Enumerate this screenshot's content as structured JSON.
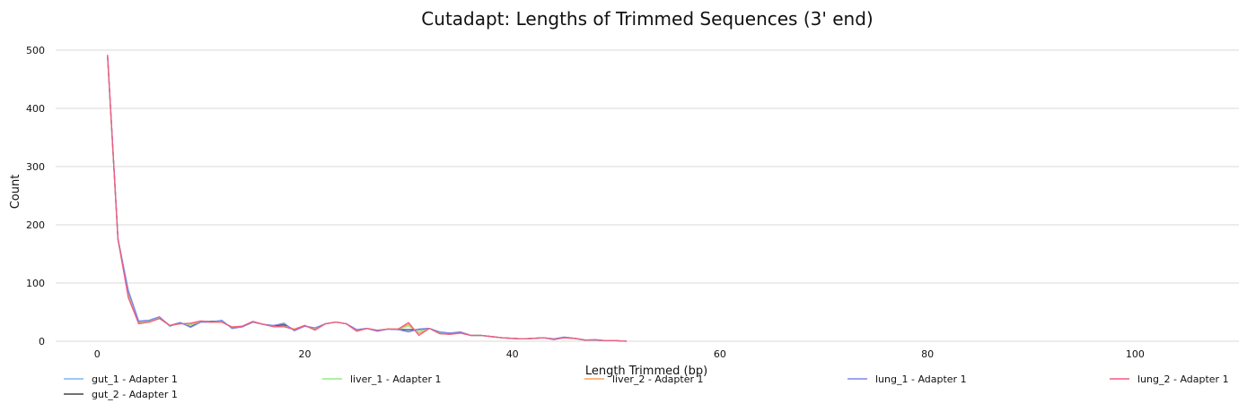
{
  "chart_data": {
    "type": "line",
    "title": "Cutadapt: Lengths of Trimmed Sequences (3' end)",
    "xlabel": "Length Trimmed (bp)",
    "ylabel": "Count",
    "xlim": [
      -4,
      110
    ],
    "ylim": [
      0,
      500
    ],
    "xticks": [
      0,
      20,
      40,
      60,
      80,
      100
    ],
    "yticks": [
      0,
      100,
      200,
      300,
      400,
      500
    ],
    "grid": "horizontal",
    "legend_position": "bottom",
    "series": [
      {
        "name": "gut_1 - Adapter 1",
        "color": "#7cb5ec",
        "x": [
          1,
          2,
          3,
          4,
          5,
          6,
          7,
          8,
          9,
          10,
          11,
          12,
          13,
          14,
          15,
          16,
          17,
          18,
          19,
          20,
          21,
          22,
          23,
          24,
          25,
          26,
          27,
          28,
          29,
          30,
          31,
          32,
          33,
          34,
          35,
          36,
          37,
          38,
          39,
          40,
          41,
          42,
          43,
          44,
          45,
          46,
          47,
          48,
          49,
          50,
          51
        ],
        "y": [
          490,
          175,
          88,
          35,
          36,
          42,
          26,
          32,
          24,
          33,
          33,
          36,
          22,
          25,
          33,
          29,
          27,
          30,
          19,
          26,
          23,
          30,
          33,
          30,
          20,
          22,
          18,
          21,
          20,
          17,
          21,
          22,
          16,
          14,
          16,
          10,
          10,
          8,
          6,
          5,
          4,
          5,
          6,
          4,
          7,
          5,
          2,
          2,
          1,
          1,
          0
        ]
      },
      {
        "name": "gut_2 - Adapter 1",
        "color": "#434348",
        "x": [
          1,
          2,
          3,
          4,
          5,
          6,
          7,
          8,
          9,
          10,
          11,
          12,
          13,
          14,
          15,
          16,
          17,
          18,
          19,
          20,
          21,
          22,
          23,
          24,
          25,
          26,
          27,
          28,
          29,
          30,
          31,
          32,
          33,
          34,
          35,
          36,
          37,
          38,
          39,
          40,
          41,
          42,
          43,
          44,
          45,
          46,
          47,
          48,
          49,
          50,
          51
        ],
        "y": [
          491,
          176,
          84,
          33,
          35,
          41,
          27,
          32,
          25,
          34,
          34,
          35,
          23,
          25,
          33,
          29,
          26,
          28,
          20,
          26,
          22,
          30,
          33,
          30,
          19,
          22,
          18,
          21,
          20,
          20,
          20,
          22,
          15,
          13,
          15,
          10,
          10,
          8,
          6,
          5,
          4,
          5,
          6,
          4,
          6,
          5,
          2,
          2,
          1,
          1,
          0
        ]
      },
      {
        "name": "liver_1 - Adapter 1",
        "color": "#90ed7d",
        "x": [
          1,
          2,
          3,
          4,
          5,
          6,
          7,
          8,
          9,
          10,
          11,
          12,
          13,
          14,
          15,
          16,
          17,
          18,
          19,
          20,
          21,
          22,
          23,
          24,
          25,
          26,
          27,
          28,
          29,
          30,
          31,
          32,
          33,
          34,
          35,
          36,
          37,
          38,
          39,
          40,
          41,
          42,
          43,
          44,
          45,
          46,
          47,
          48,
          49,
          50,
          51
        ],
        "y": [
          490,
          175,
          80,
          32,
          34,
          40,
          27,
          31,
          28,
          34,
          33,
          34,
          24,
          26,
          33,
          29,
          25,
          26,
          21,
          27,
          21,
          30,
          33,
          30,
          18,
          22,
          18,
          21,
          21,
          26,
          16,
          22,
          14,
          12,
          14,
          10,
          10,
          8,
          6,
          5,
          4,
          5,
          6,
          4,
          6,
          5,
          2,
          2,
          1,
          1,
          0
        ]
      },
      {
        "name": "liver_2 - Adapter 1",
        "color": "#f7a35c",
        "x": [
          1,
          2,
          3,
          4,
          5,
          6,
          7,
          8,
          9,
          10,
          11,
          12,
          13,
          14,
          15,
          16,
          17,
          18,
          19,
          20,
          21,
          22,
          23,
          24,
          25,
          26,
          27,
          28,
          29,
          30,
          31,
          32,
          33,
          34,
          35,
          36,
          37,
          38,
          39,
          40,
          41,
          42,
          43,
          44,
          45,
          46,
          47,
          48,
          49,
          50,
          51
        ],
        "y": [
          491,
          175,
          77,
          31,
          33,
          39,
          27,
          30,
          30,
          34,
          33,
          33,
          25,
          26,
          34,
          29,
          25,
          25,
          21,
          27,
          20,
          30,
          33,
          30,
          18,
          22,
          18,
          21,
          21,
          29,
          13,
          22,
          13,
          12,
          14,
          10,
          10,
          8,
          6,
          5,
          4,
          5,
          6,
          3,
          6,
          5,
          2,
          2,
          1,
          1,
          0
        ]
      },
      {
        "name": "lung_1 - Adapter 1",
        "color": "#8085e9",
        "x": [
          1,
          2,
          3,
          4,
          5,
          6,
          7,
          8,
          9,
          10,
          11,
          12,
          13,
          14,
          15,
          16,
          17,
          18,
          19,
          20,
          21,
          22,
          23,
          24,
          25,
          26,
          27,
          28,
          29,
          30,
          31,
          32,
          33,
          34,
          35,
          36,
          37,
          38,
          39,
          40,
          41,
          42,
          43,
          44,
          45,
          46,
          47,
          48,
          49,
          50,
          51
        ],
        "y": [
          491,
          176,
          86,
          34,
          36,
          42,
          26,
          32,
          24,
          33,
          33,
          36,
          22,
          25,
          33,
          29,
          27,
          31,
          18,
          26,
          23,
          30,
          33,
          30,
          20,
          22,
          17,
          21,
          20,
          16,
          21,
          22,
          16,
          14,
          16,
          10,
          10,
          8,
          6,
          5,
          4,
          5,
          6,
          4,
          7,
          5,
          2,
          2,
          1,
          1,
          0
        ]
      },
      {
        "name": "lung_2 - Adapter 1",
        "color": "#f15c80",
        "x": [
          1,
          2,
          3,
          4,
          5,
          6,
          7,
          8,
          9,
          10,
          11,
          12,
          13,
          14,
          15,
          16,
          17,
          18,
          19,
          20,
          21,
          22,
          23,
          24,
          25,
          26,
          27,
          28,
          29,
          30,
          31,
          32,
          33,
          34,
          35,
          36,
          37,
          38,
          39,
          40,
          41,
          42,
          43,
          44,
          45,
          46,
          47,
          48,
          49,
          50,
          51
        ],
        "y": [
          492,
          175,
          75,
          30,
          33,
          39,
          27,
          30,
          31,
          35,
          33,
          33,
          24,
          26,
          34,
          29,
          25,
          25,
          20,
          27,
          19,
          30,
          33,
          30,
          17,
          22,
          19,
          21,
          21,
          32,
          10,
          22,
          13,
          12,
          14,
          10,
          10,
          8,
          6,
          5,
          4,
          5,
          6,
          3,
          6,
          5,
          2,
          3,
          1,
          1,
          0
        ]
      }
    ]
  }
}
